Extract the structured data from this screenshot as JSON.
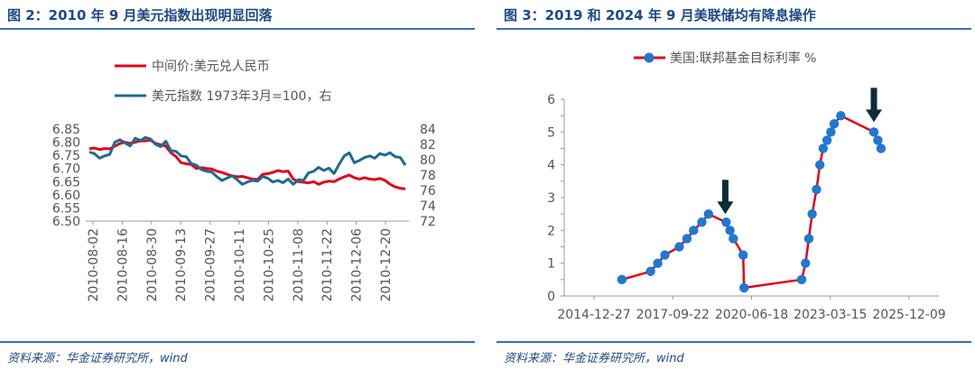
{
  "left": {
    "title": "图 2：2010 年 9 月美元指数出现明显回落",
    "source": "资料来源：华金证券研究所，wind",
    "chart_data": {
      "type": "line",
      "legend": [
        "中间价:美元兑人民币",
        "美元指数 1973年3月=100，右"
      ],
      "legend_placement": "top",
      "x_ticks": [
        "2010-08-02",
        "2010-08-16",
        "2010-08-30",
        "2010-09-13",
        "2010-09-27",
        "2010-10-11",
        "2010-10-25",
        "2010-11-08",
        "2010-11-22",
        "2010-12-06",
        "2010-12-20"
      ],
      "y_left_ticks": [
        "6.50",
        "6.55",
        "6.60",
        "6.65",
        "6.70",
        "6.75",
        "6.80",
        "6.85"
      ],
      "y_right_ticks": [
        "72",
        "74",
        "76",
        "78",
        "80",
        "82",
        "84"
      ],
      "y_left_range": [
        6.5,
        6.85
      ],
      "y_right_range": [
        72,
        84
      ],
      "grid": false,
      "colors": {
        "cny": "#e0001b",
        "dxy": "#1f6a8e"
      },
      "series": [
        {
          "name": "中间价:美元兑人民币",
          "axis": "left",
          "values": [
            6.775,
            6.778,
            6.772,
            6.776,
            6.775,
            6.785,
            6.795,
            6.8,
            6.795,
            6.8,
            6.805,
            6.805,
            6.808,
            6.795,
            6.79,
            6.785,
            6.76,
            6.745,
            6.722,
            6.718,
            6.715,
            6.7,
            6.703,
            6.7,
            6.698,
            6.69,
            6.685,
            6.678,
            6.672,
            6.668,
            6.67,
            6.665,
            6.66,
            6.658,
            6.678,
            6.68,
            6.685,
            6.692,
            6.688,
            6.69,
            6.66,
            6.65,
            6.648,
            6.645,
            6.65,
            6.64,
            6.648,
            6.652,
            6.65,
            6.66,
            6.668,
            6.675,
            6.665,
            6.66,
            6.665,
            6.66,
            6.658,
            6.662,
            6.655,
            6.64,
            6.63,
            6.625,
            6.622
          ]
        },
        {
          "name": "美元指数 1973年3月=100，右",
          "axis": "right",
          "values": [
            81.0,
            80.8,
            80.2,
            80.5,
            80.7,
            82.3,
            82.6,
            82.2,
            81.8,
            82.8,
            82.5,
            82.9,
            82.7,
            82.0,
            81.7,
            82.4,
            81.2,
            81.1,
            80.5,
            80.4,
            79.5,
            79.3,
            78.7,
            78.5,
            78.4,
            77.8,
            77.3,
            77.6,
            77.9,
            77.4,
            76.8,
            77.1,
            77.3,
            77.2,
            77.8,
            77.6,
            77.1,
            77.3,
            77.0,
            77.5,
            76.8,
            77.4,
            77.3,
            78.3,
            78.5,
            79.0,
            78.6,
            78.9,
            78.2,
            79.4,
            80.5,
            80.9,
            79.6,
            79.9,
            80.3,
            80.5,
            80.2,
            80.8,
            80.6,
            80.9,
            80.4,
            80.3,
            79.3
          ]
        }
      ]
    }
  },
  "right": {
    "title": "图 3：2019 和 2024 年 9 月美联储均有降息操作",
    "source": "资料来源：华金证券研究所，wind",
    "chart_data": {
      "type": "line",
      "legend": [
        "美国:联邦基金目标利率 %"
      ],
      "legend_placement": "top",
      "x_ticks": [
        "2014-12-27",
        "2017-09-22",
        "2020-06-18",
        "2023-03-15",
        "2025-12-09"
      ],
      "y_ticks": [
        "0",
        "0.5",
        "1",
        "1.5",
        "2",
        "2.5",
        "3",
        "3.5",
        "4",
        "4.5",
        "5",
        "5.5",
        "6"
      ],
      "y_range": [
        0,
        6
      ],
      "grid": false,
      "colors": {
        "line": "#e0001b",
        "marker": "#1f78d1",
        "arrow": "#0d2d38"
      },
      "arrows_at": [
        "2019-08-01",
        "2024-09-18"
      ],
      "series": [
        {
          "name": "美国:联邦基金目标利率 %",
          "x": [
            "2015-12-16",
            "2016-12-14",
            "2017-03-15",
            "2017-06-14",
            "2017-12-13",
            "2018-03-21",
            "2018-06-13",
            "2018-09-26",
            "2018-12-19",
            "2019-07-31",
            "2019-09-18",
            "2019-10-30",
            "2020-03-03",
            "2020-03-15",
            "2022-03-16",
            "2022-05-04",
            "2022-06-15",
            "2022-07-27",
            "2022-09-21",
            "2022-11-02",
            "2022-12-14",
            "2023-02-01",
            "2023-03-22",
            "2023-05-03",
            "2023-07-26",
            "2024-09-18",
            "2024-11-07",
            "2024-12-18"
          ],
          "y": [
            0.5,
            0.75,
            1.0,
            1.25,
            1.5,
            1.75,
            2.0,
            2.25,
            2.5,
            2.25,
            2.0,
            1.75,
            1.25,
            0.25,
            0.5,
            1.0,
            1.75,
            2.5,
            3.25,
            4.0,
            4.5,
            4.75,
            5.0,
            5.25,
            5.5,
            5.0,
            4.75,
            4.5
          ]
        }
      ]
    }
  }
}
